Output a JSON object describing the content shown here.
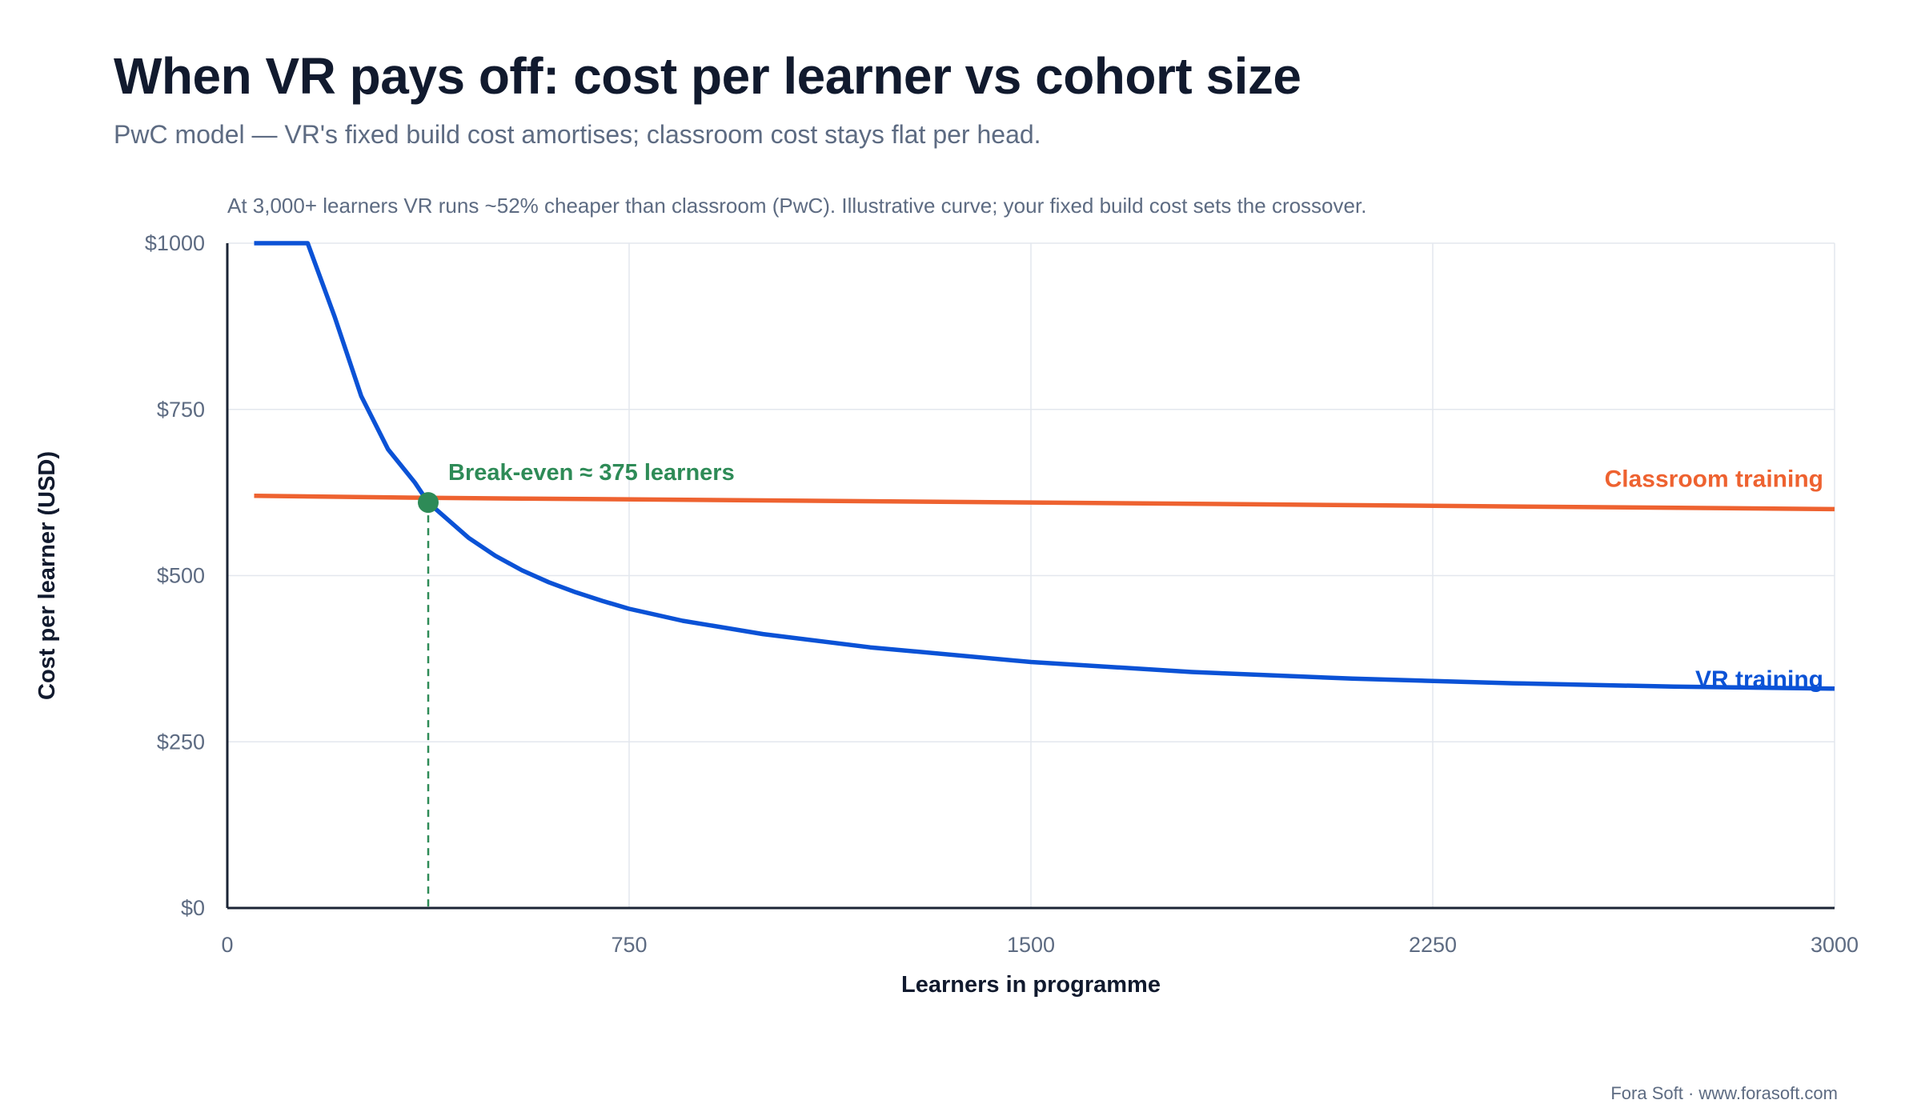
{
  "header": {
    "title": "When VR pays off: cost per learner vs cohort size",
    "subtitle": "PwC model — VR's fixed build cost amortises; classroom cost stays flat per head.",
    "note": "At 3,000+ learners VR runs ~52% cheaper than classroom (PwC). Illustrative curve; your fixed build cost sets the crossover."
  },
  "footer": {
    "credit": "Fora Soft · www.forasoft.com"
  },
  "colors": {
    "vr": "#0b52d6",
    "classroom": "#ee6230",
    "breakeven": "#2e8b57",
    "axis": "#1b2435",
    "grid": "#e3e7ee"
  },
  "chart_data": {
    "type": "line",
    "title": "When VR pays off: cost per learner vs cohort size",
    "xlabel": "Learners in programme",
    "ylabel": "Cost per learner (USD)",
    "xlim": [
      0,
      3000
    ],
    "ylim": [
      0,
      1000
    ],
    "x_ticks": [
      {
        "value": 0,
        "label": "0"
      },
      {
        "value": 750,
        "label": "750"
      },
      {
        "value": 1500,
        "label": "1500"
      },
      {
        "value": 2250,
        "label": "2250"
      },
      {
        "value": 3000,
        "label": "3000"
      }
    ],
    "y_ticks": [
      {
        "value": 0,
        "label": "$0"
      },
      {
        "value": 250,
        "label": "$250"
      },
      {
        "value": 500,
        "label": "$500"
      },
      {
        "value": 750,
        "label": "$750"
      },
      {
        "value": 1000,
        "label": "$1000"
      }
    ],
    "grid": true,
    "series": [
      {
        "name": "VR training",
        "color": "#0b52d6",
        "x": [
          50,
          150,
          200,
          250,
          300,
          350,
          375,
          450,
          500,
          550,
          600,
          650,
          700,
          750,
          850,
          1000,
          1200,
          1500,
          1800,
          2100,
          2400,
          2700,
          3000
        ],
        "y": [
          1000,
          1000,
          890,
          770,
          690,
          640,
          610,
          557,
          530,
          508,
          490,
          475,
          462,
          450,
          432,
          412,
          392,
          370,
          355,
          345,
          338,
          333,
          330
        ]
      },
      {
        "name": "Classroom training",
        "color": "#ee6230",
        "x": [
          50,
          375,
          1500,
          3000
        ],
        "y": [
          620,
          617,
          610,
          600
        ]
      }
    ],
    "annotations": [
      {
        "type": "point",
        "x": 375,
        "y": 610,
        "text": "Break-even ≈ 375 learners"
      }
    ]
  }
}
